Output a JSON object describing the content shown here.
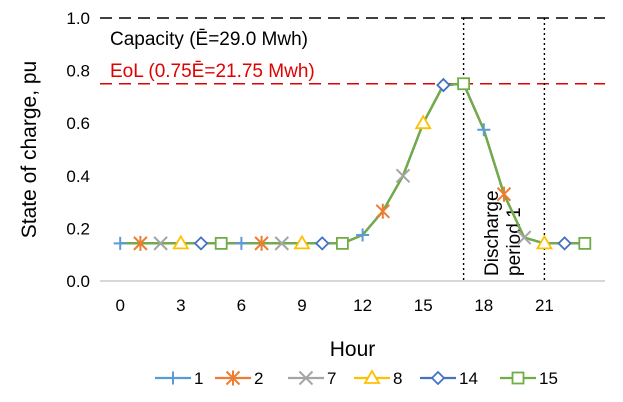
{
  "chart_data": {
    "type": "line",
    "title": "",
    "xlabel": "Hour",
    "ylabel": "State of charge, pu",
    "xlim": [
      -1,
      24
    ],
    "ylim": [
      0,
      1.0
    ],
    "x_ticks": [
      0,
      3,
      6,
      9,
      12,
      15,
      18,
      21
    ],
    "y_ticks": [
      0.0,
      0.2,
      0.4,
      0.6,
      0.8,
      1.0
    ],
    "x_tick_labels": [
      "0",
      "3",
      "6",
      "9",
      "12",
      "15",
      "18",
      "21"
    ],
    "y_tick_labels": [
      "0.0",
      "0.2",
      "0.4",
      "0.6",
      "0.8",
      "1.0"
    ],
    "x": [
      0,
      1,
      2,
      3,
      4,
      5,
      6,
      7,
      8,
      9,
      10,
      11,
      12,
      13,
      14,
      15,
      16,
      17,
      18,
      19,
      20,
      21,
      22,
      23
    ],
    "soc_curve": [
      0.143,
      0.143,
      0.143,
      0.143,
      0.143,
      0.143,
      0.143,
      0.143,
      0.143,
      0.143,
      0.143,
      0.143,
      0.175,
      0.265,
      0.4,
      0.6,
      0.745,
      0.75,
      0.575,
      0.33,
      0.165,
      0.143,
      0.143,
      0.143
    ],
    "series": [
      {
        "name": "1",
        "color": "#5b9bd5",
        "marker": "plus",
        "marker_x": [
          0,
          6,
          12,
          18
        ]
      },
      {
        "name": "2",
        "color": "#ed7d31",
        "marker": "star",
        "marker_x": [
          1,
          7,
          13,
          19
        ]
      },
      {
        "name": "7",
        "color": "#a5a5a5",
        "marker": "x",
        "marker_x": [
          2,
          8,
          14,
          20
        ]
      },
      {
        "name": "8",
        "color": "#ffc000",
        "marker": "triangle",
        "marker_x": [
          3,
          9,
          15,
          21
        ]
      },
      {
        "name": "14",
        "color": "#4472c4",
        "marker": "diamond",
        "marker_x": [
          4,
          10,
          16,
          22
        ]
      },
      {
        "name": "15",
        "color": "#70ad47",
        "marker": "square",
        "marker_x": [
          5,
          11,
          17,
          23
        ]
      }
    ],
    "reference_lines": [
      {
        "y": 1.0,
        "color": "#000000",
        "label": "Capacity (Ē=29.0 Mwh)"
      },
      {
        "y": 0.75,
        "color": "#e00000",
        "label": "EoL (0.75Ē=21.75 Mwh)"
      }
    ],
    "vertical_lines": [
      17,
      21
    ],
    "annotation": [
      "Discharge",
      "period 1"
    ],
    "legend_position": "bottom"
  }
}
